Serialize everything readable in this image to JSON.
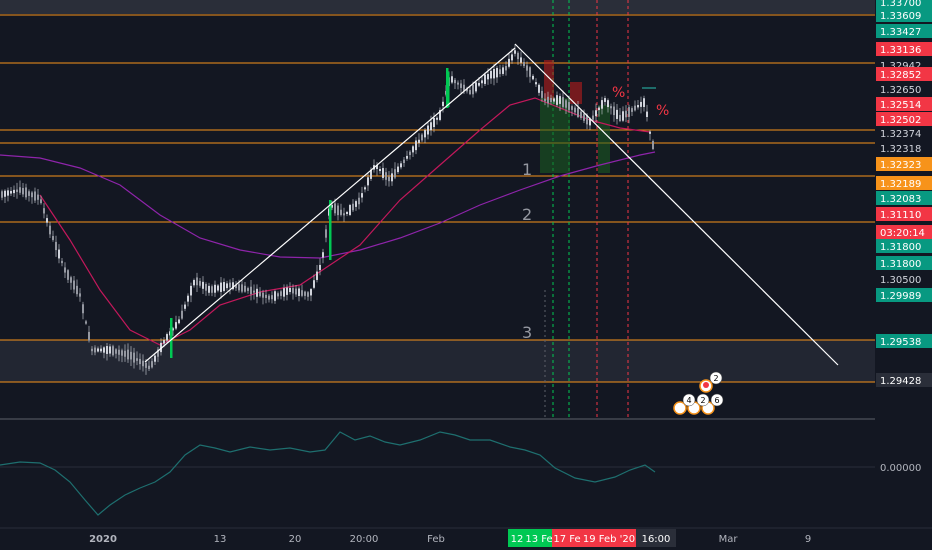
{
  "chart_data": {
    "type": "candlestick",
    "timeframe_labels": [
      "2020",
      "13",
      "20",
      "20:00",
      "Feb",
      "Mar",
      "9"
    ],
    "highlighted_time_labels": [
      {
        "text": "12",
        "color": "#00c853"
      },
      {
        "text": "13 Fe",
        "color": "#00c853"
      },
      {
        "text": "17 Fe",
        "color": "#f23645"
      },
      {
        "text": "19 Feb '20",
        "color": "#f23645"
      },
      {
        "text": "16:00",
        "color": "#2a2e39"
      }
    ],
    "price_axis_labels": [
      {
        "text": "1.33700",
        "style": "green"
      },
      {
        "text": "1.33609",
        "style": "green"
      },
      {
        "text": "1.33427",
        "style": "green"
      },
      {
        "text": "1.33136",
        "style": "red"
      },
      {
        "text": "1.32942",
        "style": "plain"
      },
      {
        "text": "1.32852",
        "style": "red"
      },
      {
        "text": "1.32650",
        "style": "plain"
      },
      {
        "text": "1.32514",
        "style": "red"
      },
      {
        "text": "1.32502",
        "style": "red"
      },
      {
        "text": "1.32374",
        "style": "plain"
      },
      {
        "text": "1.32318",
        "style": "plain"
      },
      {
        "text": "1.32323",
        "style": "orange"
      },
      {
        "text": "1.32189",
        "style": "orange"
      },
      {
        "text": "1.32083",
        "style": "green"
      },
      {
        "text": "1.31110",
        "style": "red"
      },
      {
        "text": "03:20:14",
        "style": "red"
      },
      {
        "text": "1.31800",
        "style": "green"
      },
      {
        "text": "1.31800",
        "style": "green"
      },
      {
        "text": "1.30500",
        "style": "plain"
      },
      {
        "text": "1.29989",
        "style": "green"
      },
      {
        "text": "1.29538",
        "style": "green"
      },
      {
        "text": "1.29428",
        "style": "gray"
      }
    ],
    "horizontal_levels": [
      1.33609,
      1.33136,
      1.32502,
      1.32374,
      1.32323,
      1.318,
      1.29989,
      1.29538
    ],
    "zone": [
      1.29538,
      1.29989
    ],
    "wave_labels": [
      "1",
      "2",
      "3"
    ],
    "percent_markers": [
      "%",
      "%"
    ],
    "oscillator_label": "0.00000",
    "event_badges": [
      "2",
      "4",
      "2",
      "6"
    ],
    "colors": {
      "background": "#131722",
      "up": "#26a69a",
      "down": "#ef5350",
      "level": "#f7931a",
      "ma_fast": "#c2185b",
      "ma_slow": "#8e24aa",
      "oscillator": "#1e6f6f"
    }
  }
}
